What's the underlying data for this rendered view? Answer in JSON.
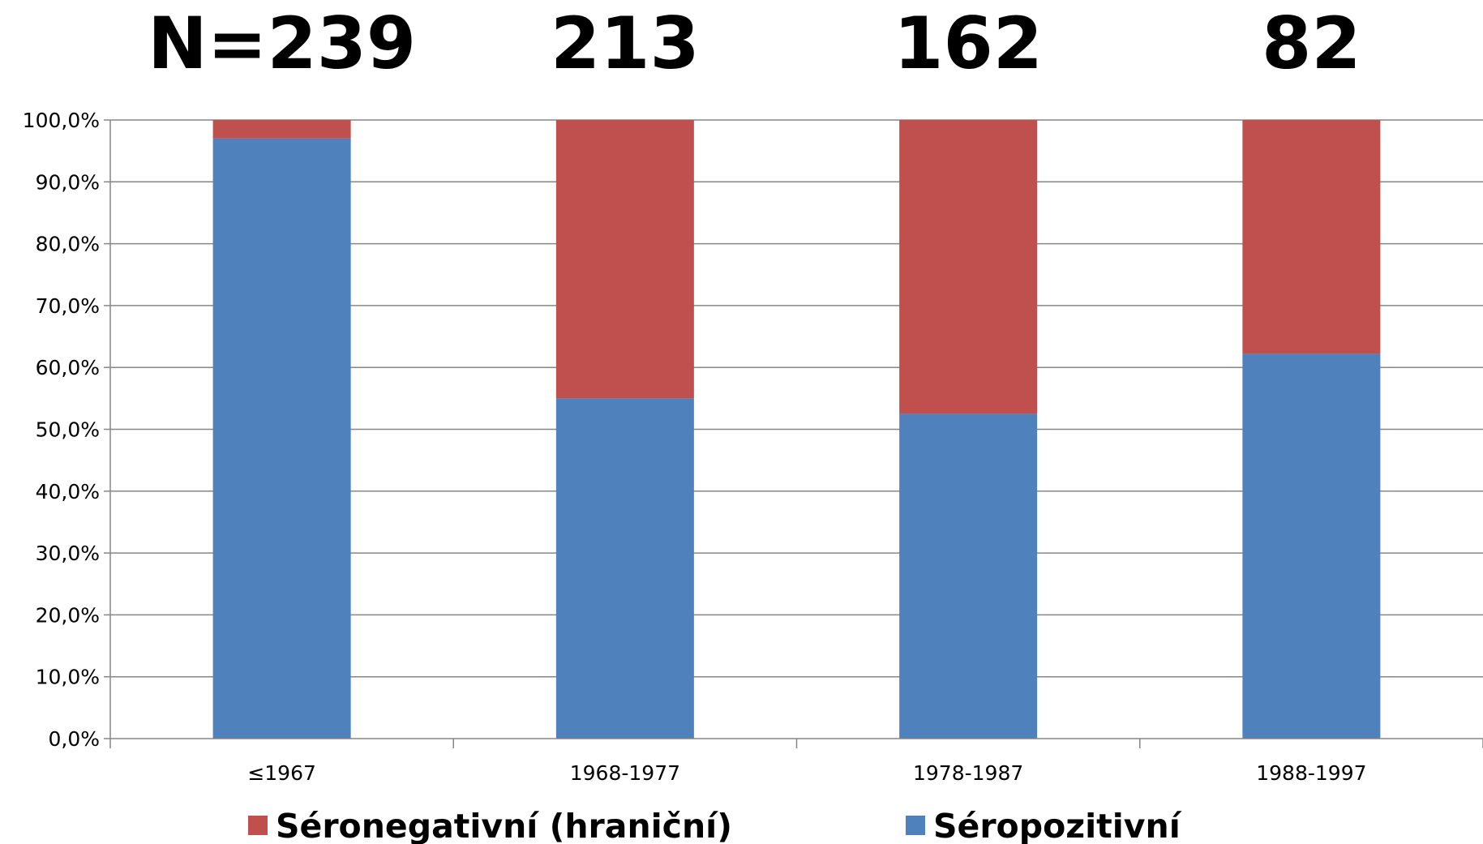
{
  "n_counts": [
    "N=239",
    "213",
    "162",
    "82"
  ],
  "chart_data": {
    "type": "bar",
    "stacked": true,
    "categories": [
      "≤1967",
      "1968-1977",
      "1978-1987",
      "1988-1997"
    ],
    "series": [
      {
        "name": "Séropozitivní",
        "values": [
          97.0,
          55.0,
          52.5,
          62.2
        ],
        "color": "#4F81BD"
      },
      {
        "name": "Séronegativní (hraniční)",
        "values": [
          3.0,
          45.0,
          47.5,
          37.8
        ],
        "color": "#C0504D"
      }
    ],
    "ylim": [
      0,
      100
    ],
    "yticks": [
      "0,0%",
      "10,0%",
      "20,0%",
      "30,0%",
      "40,0%",
      "50,0%",
      "60,0%",
      "70,0%",
      "80,0%",
      "90,0%",
      "100,0%"
    ],
    "grid": true,
    "legend_position": "bottom",
    "legend": [
      "Séronegativní (hraniční)",
      "Séropozitivní"
    ],
    "title": "",
    "xlabel": "",
    "ylabel": ""
  }
}
